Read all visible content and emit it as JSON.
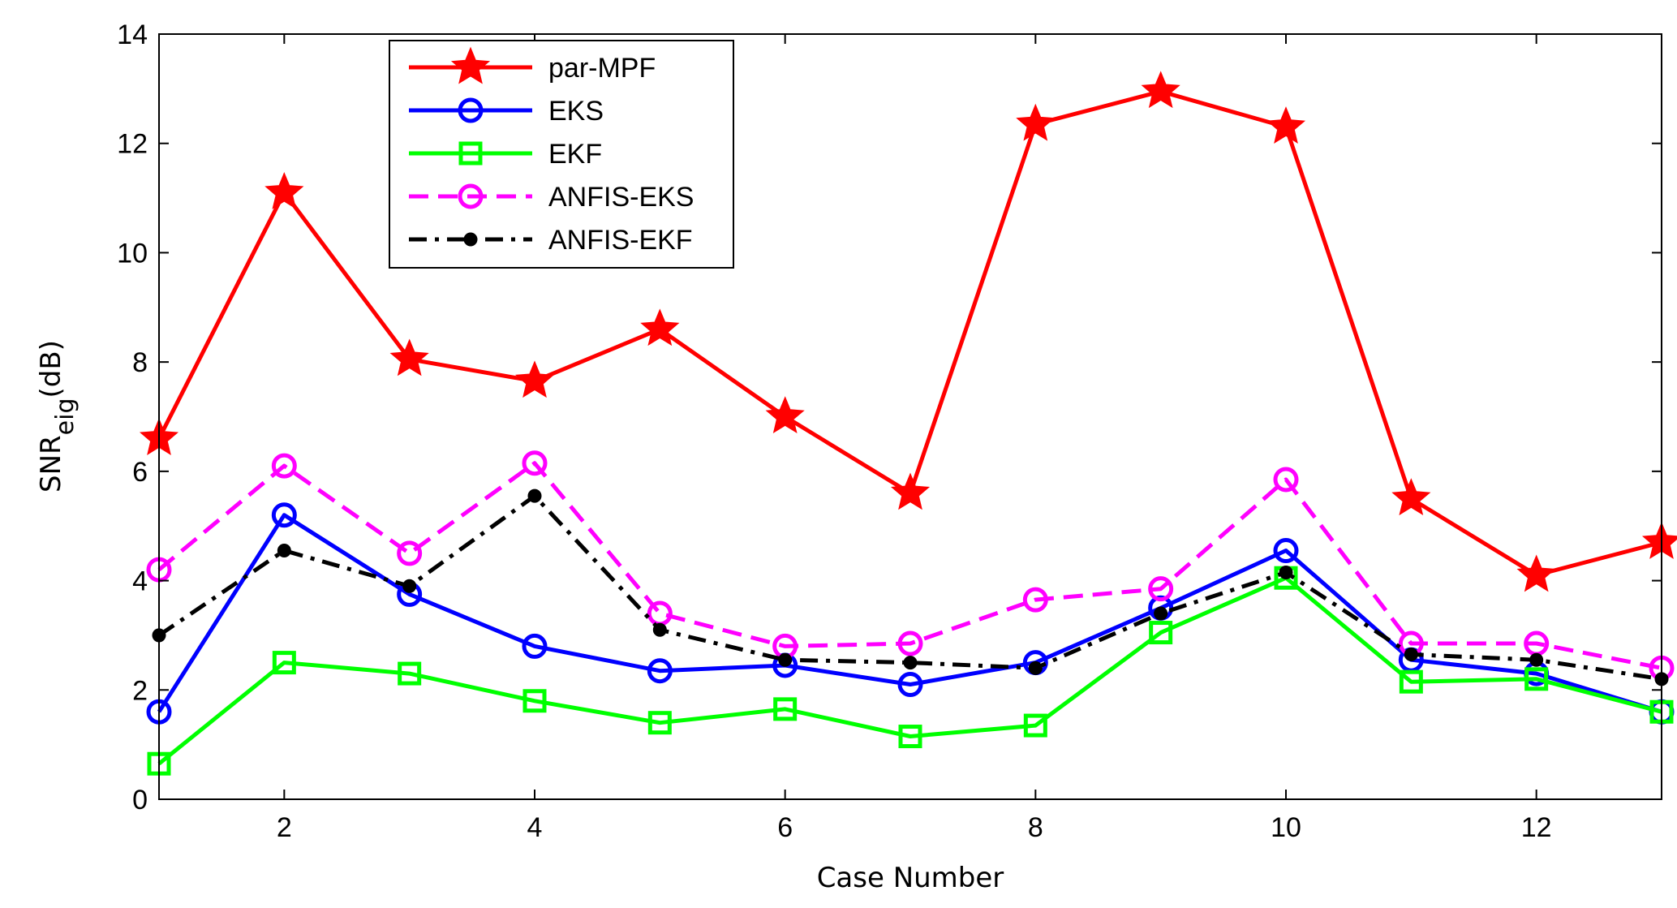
{
  "chart_data": {
    "type": "line",
    "title": "",
    "xlabel": "Case Number",
    "ylabel": "SNR",
    "ylabel_subscript": "eig",
    "ylabel_unit": "(dB)",
    "xlim": [
      1,
      13
    ],
    "ylim": [
      0,
      14
    ],
    "xticks": [
      2,
      4,
      6,
      8,
      10,
      12
    ],
    "yticks": [
      0,
      2,
      4,
      6,
      8,
      10,
      12,
      14
    ],
    "grid": false,
    "legend_position": "top-left",
    "x": [
      1,
      2,
      3,
      4,
      5,
      6,
      7,
      8,
      9,
      10,
      11,
      12,
      13
    ],
    "series": [
      {
        "name": "par-MPF",
        "color": "#ff0000",
        "marker": "star",
        "dash": "solid",
        "values": [
          6.6,
          11.1,
          8.05,
          7.65,
          8.6,
          7.0,
          5.6,
          12.35,
          12.95,
          12.3,
          5.5,
          4.1,
          4.7
        ]
      },
      {
        "name": "EKS",
        "color": "#0000ff",
        "marker": "circle",
        "dash": "solid",
        "values": [
          1.6,
          5.2,
          3.75,
          2.8,
          2.35,
          2.45,
          2.1,
          2.5,
          3.5,
          4.55,
          2.55,
          2.3,
          1.6
        ]
      },
      {
        "name": "EKF",
        "color": "#00ff00",
        "marker": "square",
        "dash": "solid",
        "values": [
          0.65,
          2.5,
          2.3,
          1.8,
          1.4,
          1.65,
          1.15,
          1.35,
          3.05,
          4.05,
          2.15,
          2.2,
          1.6
        ]
      },
      {
        "name": "ANFIS-EKS",
        "color": "#ff00ff",
        "marker": "circle",
        "dash": "dashed",
        "values": [
          4.2,
          6.1,
          4.5,
          6.15,
          3.4,
          2.8,
          2.85,
          3.65,
          3.85,
          5.85,
          2.85,
          2.85,
          2.4
        ]
      },
      {
        "name": "ANFIS-EKF",
        "color": "#000000",
        "marker": "dot",
        "dash": "dashdot",
        "values": [
          3.0,
          4.55,
          3.9,
          5.55,
          3.1,
          2.55,
          2.5,
          2.4,
          3.4,
          4.15,
          2.65,
          2.55,
          2.2
        ]
      }
    ]
  }
}
